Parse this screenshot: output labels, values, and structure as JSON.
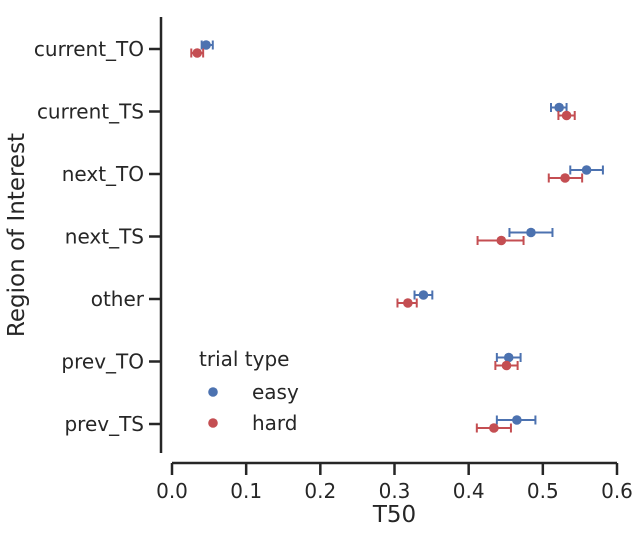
{
  "chart_data": {
    "type": "scatter",
    "orientation": "horizontal",
    "xlabel": "T50",
    "ylabel": "Region of Interest",
    "xlim": [
      0.0,
      0.6
    ],
    "xticks": [
      "0.0",
      "0.1",
      "0.2",
      "0.3",
      "0.4",
      "0.5",
      "0.6"
    ],
    "xtick_values": [
      0.0,
      0.1,
      0.2,
      0.3,
      0.4,
      0.5,
      0.6
    ],
    "categories": [
      "current_TO",
      "current_TS",
      "next_TO",
      "next_TS",
      "other",
      "prev_TO",
      "prev_TS"
    ],
    "grid": false,
    "legend": {
      "title": "trial type",
      "position": "bottom-left"
    },
    "series": [
      {
        "name": "easy",
        "color": "#4c72b0",
        "values": [
          0.046,
          0.522,
          0.559,
          0.484,
          0.339,
          0.454,
          0.465
        ],
        "err_low": [
          0.04,
          0.511,
          0.537,
          0.455,
          0.327,
          0.438,
          0.438
        ],
        "err_high": [
          0.055,
          0.532,
          0.581,
          0.513,
          0.351,
          0.47,
          0.49
        ]
      },
      {
        "name": "hard",
        "color": "#c44e52",
        "values": [
          0.034,
          0.532,
          0.53,
          0.444,
          0.318,
          0.451,
          0.434
        ],
        "err_low": [
          0.026,
          0.521,
          0.508,
          0.412,
          0.304,
          0.436,
          0.411
        ],
        "err_high": [
          0.042,
          0.543,
          0.553,
          0.474,
          0.33,
          0.466,
          0.457
        ]
      }
    ]
  }
}
